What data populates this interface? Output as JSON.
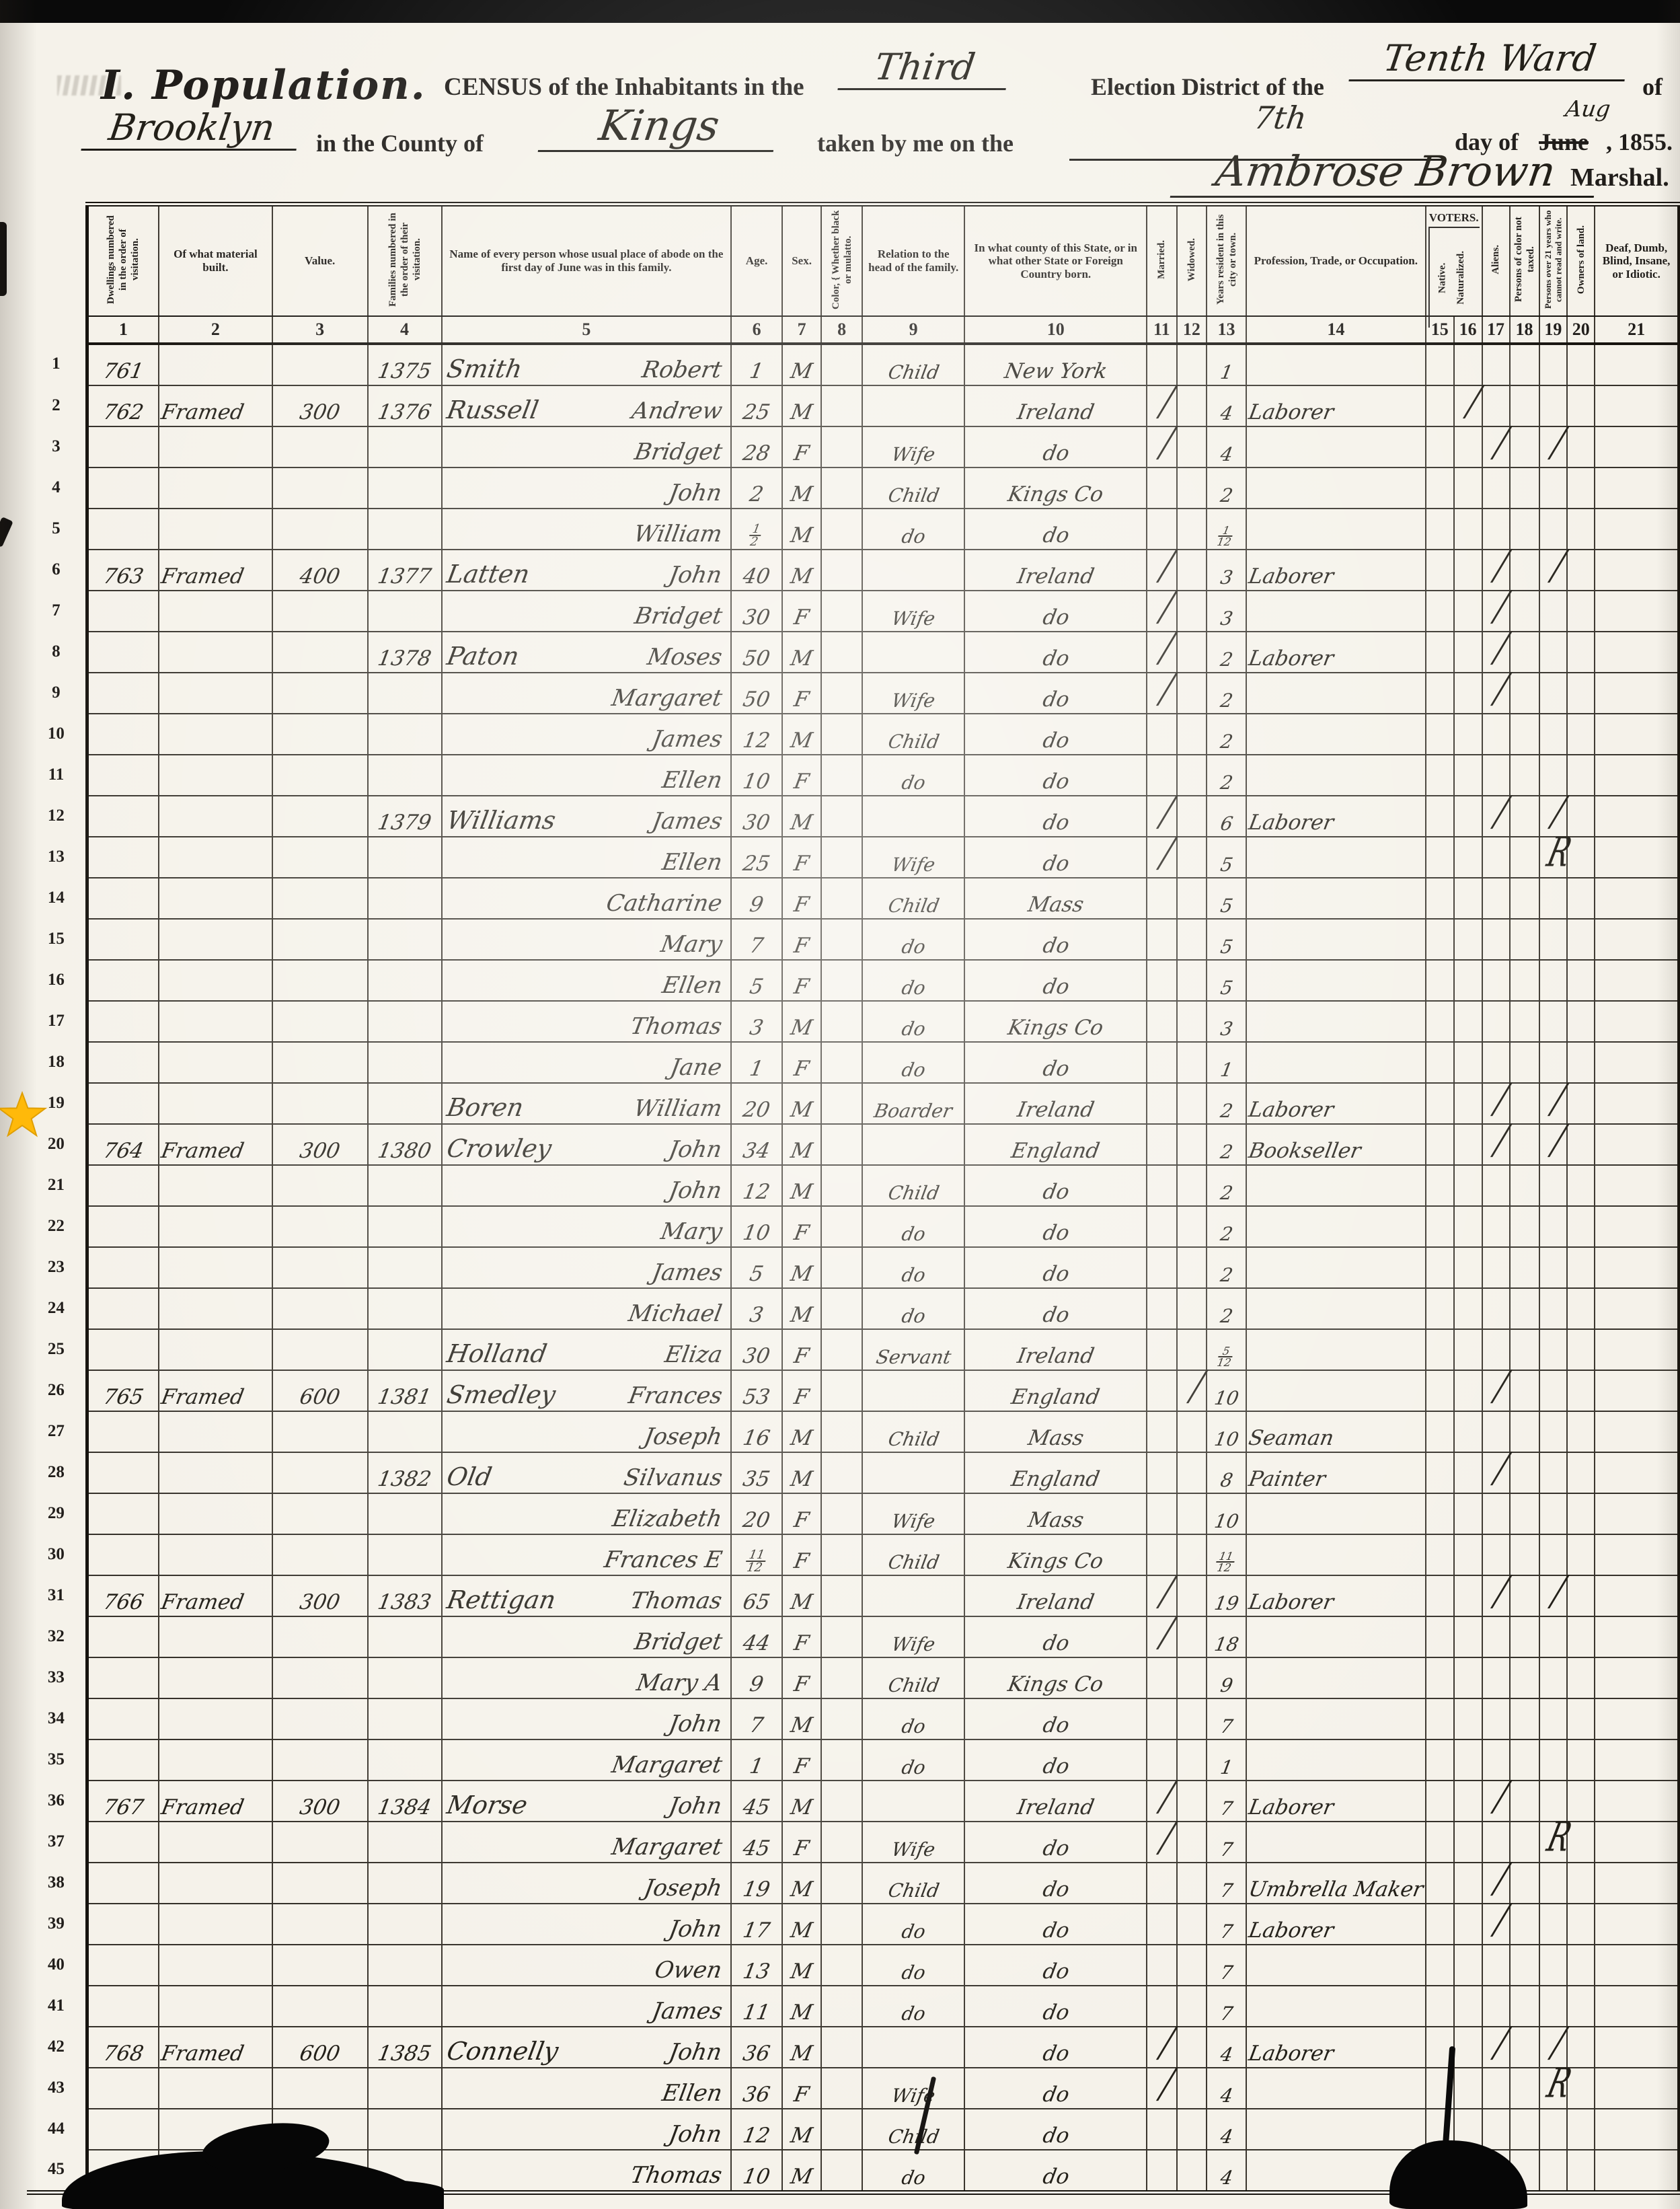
{
  "header": {
    "section_title": "I. Population.",
    "census_prefix": "CENSUS of the Inhabitants in the",
    "district_value": "Third",
    "district_label": "Election District of the",
    "ward_value": "Tenth Ward",
    "of_label": "of",
    "city_value": "Brooklyn",
    "county_label": "in the County of",
    "county_value": "Kings",
    "taken_label": "taken by me on the",
    "day_value": "7th",
    "dayof_label": "day of",
    "month_struck": "June",
    "month_inserted": "Aug",
    "year_label": ", 1855.",
    "signature": "Ambrose Brown",
    "marshal_label": "Marshal.",
    "voters_label": "VOTERS."
  },
  "annotation": {
    "star_color": "#FFB90A",
    "star_line": 20
  },
  "columns": [
    {
      "num": "1",
      "label": "Dwellings numbered in the order of visitation."
    },
    {
      "num": "2",
      "label": "Of what material built."
    },
    {
      "num": "3",
      "label": "Value."
    },
    {
      "num": "4",
      "label": "Families numbered in the order of their visitation."
    },
    {
      "num": "5",
      "label": "Name of every person whose usual place of abode on the first day of June was in this family."
    },
    {
      "num": "6",
      "label": "Age."
    },
    {
      "num": "7",
      "label": "Sex."
    },
    {
      "num": "8",
      "label": "Color, { Whether black or mulatto."
    },
    {
      "num": "9",
      "label": "Relation to the head of the family."
    },
    {
      "num": "10",
      "label": "In what county of this State, or in what other State or Foreign Country born."
    },
    {
      "num": "11",
      "label": "Married."
    },
    {
      "num": "12",
      "label": "Widowed."
    },
    {
      "num": "13",
      "label": "Years resident in this city or town."
    },
    {
      "num": "14",
      "label": "Profession, Trade, or Occupation."
    },
    {
      "num": "15",
      "label": "Native."
    },
    {
      "num": "16",
      "label": "Naturalized."
    },
    {
      "num": "17",
      "label": "Aliens."
    },
    {
      "num": "18",
      "label": "Persons of color not taxed."
    },
    {
      "num": "19",
      "label": "Persons over 21 years who cannot read and write."
    },
    {
      "num": "20",
      "label": "Owners of land."
    },
    {
      "num": "21",
      "label": "Deaf, Dumb, Blind, Insane, or Idiotic."
    }
  ],
  "rows": [
    {
      "n": 1,
      "dwelling": "761",
      "family": "1375",
      "surname": "Smith",
      "given": "Robert",
      "age": "1",
      "sex": "M",
      "relation": "Child",
      "born": "New York",
      "years": "1"
    },
    {
      "n": 2,
      "dwelling": "762",
      "material": "Framed",
      "value": "300",
      "family": "1376",
      "surname": "Russell",
      "given": "Andrew",
      "age": "25",
      "sex": "M",
      "born": "Ireland",
      "married": "/",
      "years": "4",
      "profession": "Laborer",
      "m16": "/"
    },
    {
      "n": 3,
      "given": "Bridget",
      "age": "28",
      "sex": "F",
      "relation": "Wife",
      "born": "do",
      "married": "/",
      "years": "4",
      "m17": "/",
      "m19": "/"
    },
    {
      "n": 4,
      "given": "John",
      "age": "2",
      "sex": "M",
      "relation": "Child",
      "born": "Kings Co",
      "years": "2"
    },
    {
      "n": 5,
      "given": "William",
      "age": "1|2",
      "sex": "M",
      "relation": "do",
      "born": "do",
      "years": "1|12"
    },
    {
      "n": 6,
      "dwelling": "763",
      "material": "Framed",
      "value": "400",
      "family": "1377",
      "surname": "Latten",
      "given": "John",
      "age": "40",
      "sex": "M",
      "born": "Ireland",
      "married": "/",
      "years": "3",
      "profession": "Laborer",
      "m17": "/",
      "m19": "/"
    },
    {
      "n": 7,
      "given": "Bridget",
      "age": "30",
      "sex": "F",
      "relation": "Wife",
      "born": "do",
      "married": "/",
      "years": "3",
      "m17": "/"
    },
    {
      "n": 8,
      "family": "1378",
      "surname": "Paton",
      "given": "Moses",
      "age": "50",
      "sex": "M",
      "born": "do",
      "married": "/",
      "years": "2",
      "profession": "Laborer",
      "m17": "/"
    },
    {
      "n": 9,
      "given": "Margaret",
      "age": "50",
      "sex": "F",
      "relation": "Wife",
      "born": "do",
      "married": "/",
      "years": "2",
      "m17": "/"
    },
    {
      "n": 10,
      "given": "James",
      "age": "12",
      "sex": "M",
      "relation": "Child",
      "born": "do",
      "years": "2"
    },
    {
      "n": 11,
      "given": "Ellen",
      "age": "10",
      "sex": "F",
      "relation": "do",
      "born": "do",
      "years": "2"
    },
    {
      "n": 12,
      "family": "1379",
      "surname": "Williams",
      "given": "James",
      "age": "30",
      "sex": "M",
      "born": "do",
      "married": "/",
      "years": "6",
      "profession": "Laborer",
      "m17": "/",
      "m19": "/"
    },
    {
      "n": 13,
      "given": "Ellen",
      "age": "25",
      "sex": "F",
      "relation": "Wife",
      "born": "do",
      "married": "/",
      "years": "5",
      "m19": "R"
    },
    {
      "n": 14,
      "given": "Catharine",
      "age": "9",
      "sex": "F",
      "relation": "Child",
      "born": "Mass",
      "years": "5"
    },
    {
      "n": 15,
      "given": "Mary",
      "age": "7",
      "sex": "F",
      "relation": "do",
      "born": "do",
      "years": "5"
    },
    {
      "n": 16,
      "given": "Ellen",
      "age": "5",
      "sex": "F",
      "relation": "do",
      "born": "do",
      "years": "5"
    },
    {
      "n": 17,
      "given": "Thomas",
      "age": "3",
      "sex": "M",
      "relation": "do",
      "born": "Kings Co",
      "years": "3"
    },
    {
      "n": 18,
      "given": "Jane",
      "age": "1",
      "sex": "F",
      "relation": "do",
      "born": "do",
      "years": "1"
    },
    {
      "n": 19,
      "surname": "Boren",
      "given": "William",
      "age": "20",
      "sex": "M",
      "relation": "Boarder",
      "born": "Ireland",
      "years": "2",
      "profession": "Laborer",
      "m17": "/",
      "m19": "/"
    },
    {
      "n": 20,
      "dwelling": "764",
      "material": "Framed",
      "value": "300",
      "family": "1380",
      "surname": "Crowley",
      "given": "John",
      "age": "34",
      "sex": "M",
      "born": "England",
      "years": "2",
      "profession": "Bookseller",
      "m17": "/",
      "m19": "/"
    },
    {
      "n": 21,
      "given": "John",
      "age": "12",
      "sex": "M",
      "relation": "Child",
      "born": "do",
      "years": "2"
    },
    {
      "n": 22,
      "given": "Mary",
      "age": "10",
      "sex": "F",
      "relation": "do",
      "born": "do",
      "years": "2"
    },
    {
      "n": 23,
      "given": "James",
      "age": "5",
      "sex": "M",
      "relation": "do",
      "born": "do",
      "years": "2"
    },
    {
      "n": 24,
      "given": "Michael",
      "age": "3",
      "sex": "M",
      "relation": "do",
      "born": "do",
      "years": "2"
    },
    {
      "n": 25,
      "surname": "Holland",
      "given": "Eliza",
      "age": "30",
      "sex": "F",
      "relation": "Servant",
      "born": "Ireland",
      "years": "5|12"
    },
    {
      "n": 26,
      "dwelling": "765",
      "material": "Framed",
      "value": "600",
      "family": "1381",
      "surname": "Smedley",
      "given": "Frances",
      "age": "53",
      "sex": "F",
      "born": "England",
      "widowed": "/",
      "years": "10",
      "m17": "/"
    },
    {
      "n": 27,
      "given": "Joseph",
      "age": "16",
      "sex": "M",
      "relation": "Child",
      "born": "Mass",
      "years": "10",
      "profession": "Seaman"
    },
    {
      "n": 28,
      "family": "1382",
      "surname": "Old",
      "given": "Silvanus",
      "age": "35",
      "sex": "M",
      "born": "England",
      "years": "8",
      "profession": "Painter",
      "m17": "/"
    },
    {
      "n": 29,
      "given": "Elizabeth",
      "age": "20",
      "sex": "F",
      "relation": "Wife",
      "born": "Mass",
      "years": "10"
    },
    {
      "n": 30,
      "given": "Frances E",
      "age": "11|12",
      "sex": "F",
      "relation": "Child",
      "born": "Kings Co",
      "years": "11|12"
    },
    {
      "n": 31,
      "dwelling": "766",
      "material": "Framed",
      "value": "300",
      "family": "1383",
      "surname": "Rettigan",
      "given": "Thomas",
      "age": "65",
      "sex": "M",
      "born": "Ireland",
      "married": "/",
      "years": "19",
      "profession": "Laborer",
      "m17": "/",
      "m19": "/"
    },
    {
      "n": 32,
      "given": "Bridget",
      "age": "44",
      "sex": "F",
      "relation": "Wife",
      "born": "do",
      "married": "/",
      "years": "18"
    },
    {
      "n": 33,
      "given": "Mary A",
      "age": "9",
      "sex": "F",
      "relation": "Child",
      "born": "Kings Co",
      "years": "9"
    },
    {
      "n": 34,
      "given": "John",
      "age": "7",
      "sex": "M",
      "relation": "do",
      "born": "do",
      "years": "7"
    },
    {
      "n": 35,
      "given": "Margaret",
      "age": "1",
      "sex": "F",
      "relation": "do",
      "born": "do",
      "years": "1"
    },
    {
      "n": 36,
      "dwelling": "767",
      "material": "Framed",
      "value": "300",
      "family": "1384",
      "surname": "Morse",
      "given": "John",
      "age": "45",
      "sex": "M",
      "born": "Ireland",
      "married": "/",
      "years": "7",
      "profession": "Laborer",
      "m17": "/"
    },
    {
      "n": 37,
      "given": "Margaret",
      "age": "45",
      "sex": "F",
      "relation": "Wife",
      "born": "do",
      "married": "/",
      "years": "7",
      "m19": "R"
    },
    {
      "n": 38,
      "given": "Joseph",
      "age": "19",
      "sex": "M",
      "relation": "Child",
      "born": "do",
      "years": "7",
      "profession": "Umbrella Maker",
      "m17": "/"
    },
    {
      "n": 39,
      "given": "John",
      "age": "17",
      "sex": "M",
      "relation": "do",
      "born": "do",
      "years": "7",
      "profession": "Laborer",
      "m17": "/"
    },
    {
      "n": 40,
      "given": "Owen",
      "age": "13",
      "sex": "M",
      "relation": "do",
      "born": "do",
      "years": "7"
    },
    {
      "n": 41,
      "given": "James",
      "age": "11",
      "sex": "M",
      "relation": "do",
      "born": "do",
      "years": "7"
    },
    {
      "n": 42,
      "dwelling": "768",
      "material": "Framed",
      "value": "600",
      "family": "1385",
      "surname": "Connelly",
      "given": "John",
      "age": "36",
      "sex": "M",
      "born": "do",
      "married": "/",
      "years": "4",
      "profession": "Laborer",
      "m17": "/",
      "m19": "/"
    },
    {
      "n": 43,
      "given": "Ellen",
      "age": "36",
      "sex": "F",
      "relation": "Wife",
      "born": "do",
      "married": "/",
      "years": "4",
      "m19": "R"
    },
    {
      "n": 44,
      "given": "John",
      "age": "12",
      "sex": "M",
      "relation": "Child",
      "born": "do",
      "years": "4"
    },
    {
      "n": 45,
      "given": "Thomas",
      "age": "10",
      "sex": "M",
      "relation": "do",
      "born": "do",
      "years": "4"
    }
  ]
}
